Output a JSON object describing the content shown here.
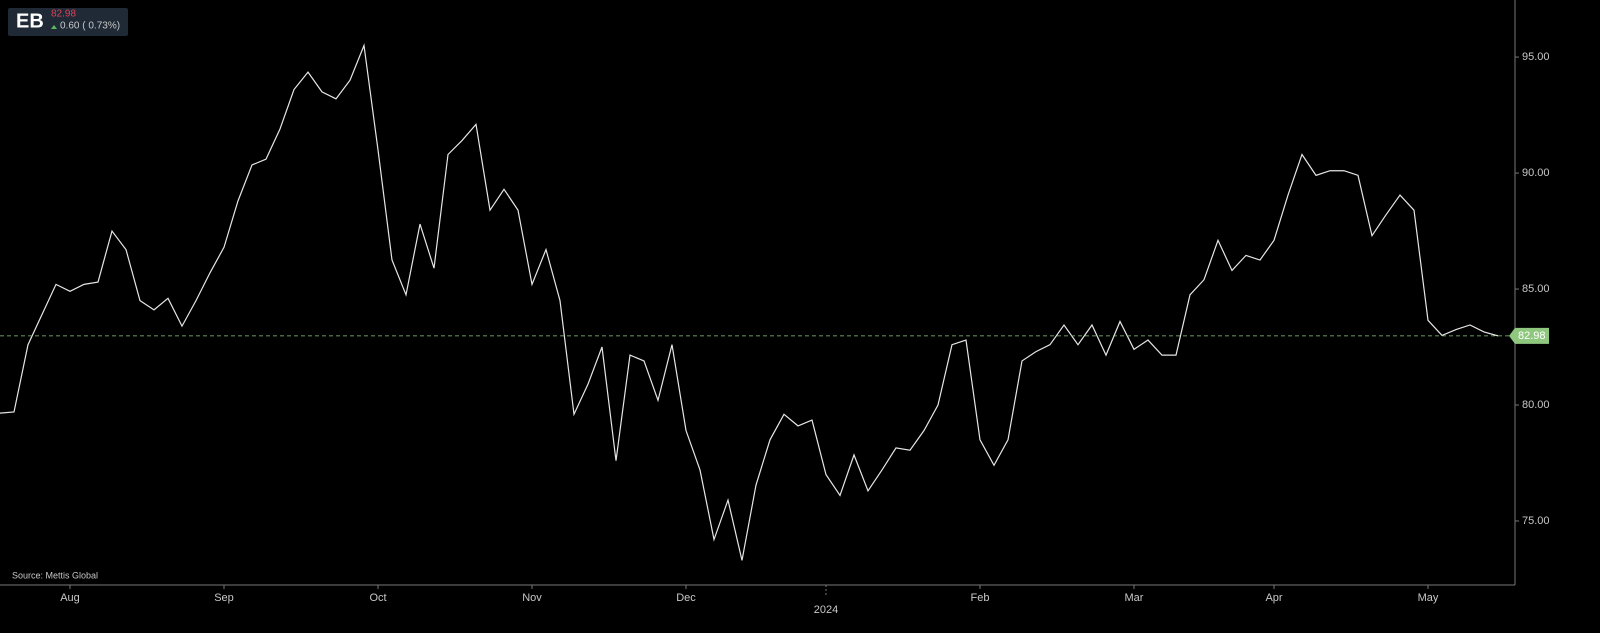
{
  "header": {
    "ticker": "EB",
    "price": "82.98",
    "change": "0.60 ( 0.73%)"
  },
  "chart_data": {
    "type": "line",
    "source": "Source: Mettis Global",
    "categories": [
      null,
      null,
      null,
      null,
      null,
      "Aug",
      null,
      null,
      null,
      null,
      null,
      null,
      null,
      null,
      null,
      null,
      "Sep",
      null,
      null,
      null,
      null,
      null,
      null,
      null,
      null,
      null,
      null,
      "Oct",
      null,
      null,
      null,
      null,
      null,
      null,
      null,
      null,
      null,
      null,
      "Nov",
      null,
      null,
      null,
      null,
      null,
      null,
      null,
      null,
      null,
      null,
      "Dec",
      null,
      null,
      null,
      null,
      null,
      null,
      null,
      null,
      null,
      "2024",
      null,
      null,
      null,
      null,
      null,
      null,
      null,
      null,
      null,
      null,
      "Feb",
      null,
      null,
      null,
      null,
      null,
      null,
      null,
      null,
      null,
      null,
      "Mar",
      null,
      null,
      null,
      null,
      null,
      null,
      null,
      null,
      null,
      "Apr",
      null,
      null,
      null,
      null,
      null,
      null,
      null,
      null,
      null,
      null,
      "May",
      null,
      null,
      null,
      null,
      null
    ],
    "series": [
      {
        "color": "#e6e6e6",
        "values": [
          79.65,
          79.7,
          82.6,
          83.9,
          85.2,
          84.9,
          85.2,
          85.3,
          87.5,
          86.7,
          84.5,
          84.1,
          84.6,
          83.4,
          84.5,
          85.7,
          86.8,
          88.8,
          90.35,
          90.6,
          91.9,
          93.6,
          94.35,
          93.5,
          93.2,
          94.0,
          95.5,
          91.0,
          86.25,
          84.75,
          87.8,
          85.9,
          90.8,
          91.4,
          92.1,
          88.4,
          89.3,
          88.4,
          85.2,
          86.7,
          84.5,
          79.6,
          80.9,
          82.5,
          77.6,
          82.15,
          81.9,
          80.2,
          82.6,
          78.9,
          77.2,
          74.2,
          75.9,
          73.3,
          76.55,
          78.5,
          79.6,
          79.1,
          79.35,
          77.0,
          76.1,
          77.85,
          76.3,
          77.2,
          78.15,
          78.05,
          78.9,
          80.0,
          82.6,
          82.8,
          78.5,
          77.4,
          78.5,
          81.9,
          82.3,
          82.6,
          83.45,
          82.6,
          83.45,
          82.15,
          83.6,
          82.4,
          82.8,
          82.15,
          82.15,
          84.75,
          85.4,
          87.1,
          85.8,
          86.45,
          86.25,
          87.1,
          89.05,
          90.8,
          89.9,
          90.1,
          90.1,
          89.9,
          87.3,
          88.2,
          89.05,
          88.4,
          83.65,
          83.0,
          83.25,
          83.45,
          83.15,
          82.98
        ]
      }
    ],
    "last_price": {
      "value": 82.98,
      "label": "82.98",
      "color": "#8fc77f"
    },
    "ylim": [
      72.24,
      97.46
    ],
    "yticks": [
      {
        "value": 75,
        "label": "75.00"
      },
      {
        "value": 80,
        "label": "80.00"
      },
      {
        "value": 85,
        "label": "85.00"
      },
      {
        "value": 90,
        "label": "90.00"
      },
      {
        "value": 95,
        "label": "95.00"
      }
    ]
  }
}
